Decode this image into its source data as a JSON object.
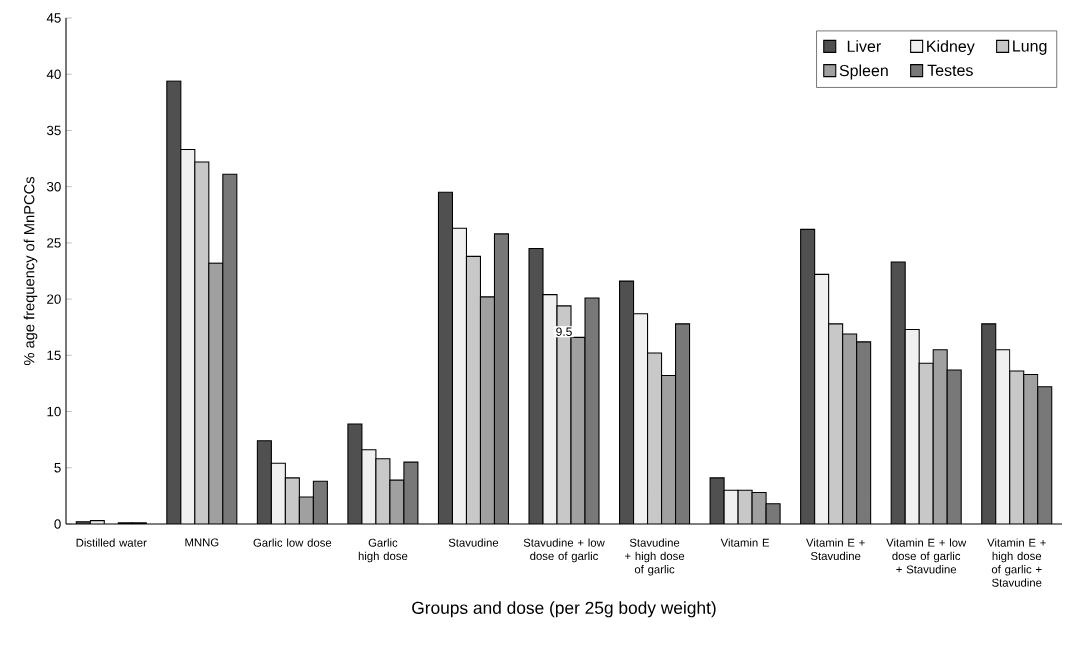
{
  "chart_data": {
    "type": "bar",
    "xlabel": "Groups and dose (per 25g body weight)",
    "ylabel": "% age frequency of MnPCCs",
    "categories": [
      "Distilled water",
      "MNNG",
      "Garlic low dose",
      "Garlic high dose",
      "Stavudine",
      "Stavudine + low dose of garlic",
      "Stavudine + high dose of garlic",
      "Vitamin E",
      "Vitamin E + Stavudine",
      "Vitamin E + low dose of garlic + Stavudine",
      "Vitamin E + high dose of garlic + Stavudine"
    ],
    "series": [
      {
        "name": "Liver",
        "color": "#505050",
        "values": [
          0.2,
          39.4,
          7.4,
          8.9,
          29.5,
          24.5,
          21.6,
          4.1,
          26.2,
          23.3,
          17.8
        ]
      },
      {
        "name": "Kidney",
        "color": "#f0f0f0",
        "values": [
          0.3,
          33.3,
          5.4,
          6.6,
          26.3,
          20.4,
          18.7,
          3.0,
          22.2,
          17.3,
          15.5
        ]
      },
      {
        "name": "Lung",
        "color": "#c8c8c8",
        "values": [
          null,
          32.2,
          4.1,
          5.8,
          23.8,
          19.4,
          15.2,
          3.0,
          17.8,
          14.3,
          13.6
        ]
      },
      {
        "name": "Spleen",
        "color": "#a0a0a0",
        "values": [
          0.1,
          23.2,
          2.4,
          3.9,
          20.2,
          16.6,
          13.2,
          2.8,
          16.9,
          15.5,
          13.3
        ]
      },
      {
        "name": "Testes",
        "color": "#787878",
        "values": [
          0.1,
          31.1,
          3.8,
          5.5,
          25.8,
          20.1,
          17.8,
          1.8,
          16.2,
          13.7,
          12.2
        ]
      }
    ],
    "ylim": [
      0,
      45
    ],
    "yticks": [
      0,
      5,
      10,
      15,
      20,
      25,
      30,
      35,
      40,
      45
    ],
    "grid": false,
    "legend": "top right",
    "annotations": [
      "9.5"
    ]
  }
}
